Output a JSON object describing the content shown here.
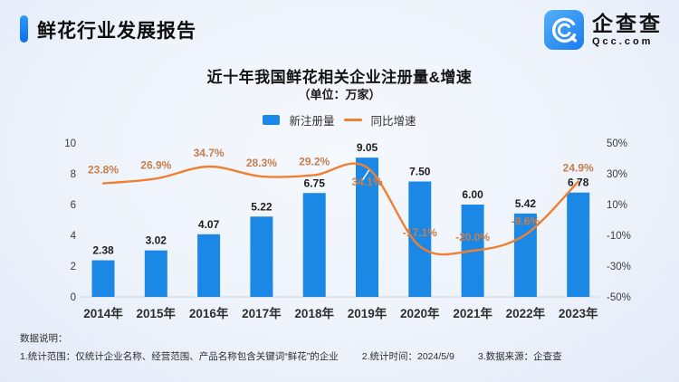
{
  "header": {
    "title": "鲜花行业发展报告",
    "logo": {
      "name": "企查查",
      "sub": "Qcc.com",
      "icon": "magnifier-c-icon"
    }
  },
  "chart_data": {
    "type": "bar",
    "title": "近十年我国鲜花相关企业注册量&增速",
    "subtitle": "（单位：万家）",
    "categories": [
      "2014年",
      "2015年",
      "2016年",
      "2017年",
      "2018年",
      "2019年",
      "2020年",
      "2021年",
      "2022年",
      "2023年"
    ],
    "series": [
      {
        "name": "新注册量",
        "type": "bar",
        "color": "#1B88E5",
        "values": [
          2.38,
          3.02,
          4.07,
          5.22,
          6.75,
          9.05,
          7.5,
          6.0,
          5.42,
          6.78
        ]
      },
      {
        "name": "同比增速",
        "type": "line",
        "color": "#EF8032",
        "label_color": "#C67E4D",
        "unit": "%",
        "values": [
          23.8,
          26.9,
          34.7,
          28.3,
          29.2,
          34.1,
          -17.1,
          -20.0,
          -9.6,
          24.9
        ]
      }
    ],
    "left_axis": {
      "range": [
        0,
        10
      ],
      "ticks": [
        0,
        2,
        4,
        6,
        8,
        10
      ]
    },
    "right_axis": {
      "range": [
        -50,
        50
      ],
      "ticks": [
        "50%",
        "30%",
        "10%",
        "-10%",
        "-30%",
        "-50%"
      ]
    },
    "legend_position": "top",
    "grid": false,
    "line_label_below_indices": [
      5
    ]
  },
  "footnote": {
    "heading": "数据说明：",
    "items": [
      "1.统计范围：仅统计企业名称、经营范围、产品名称包含关键词“鲜花”的企业",
      "2.统计时间：2024/5/9",
      "3.数据来源：企查查"
    ]
  },
  "colors": {
    "accent": "#1677F0",
    "axis_line": "#CFD6E2",
    "text_dark": "#1D1D1D"
  }
}
